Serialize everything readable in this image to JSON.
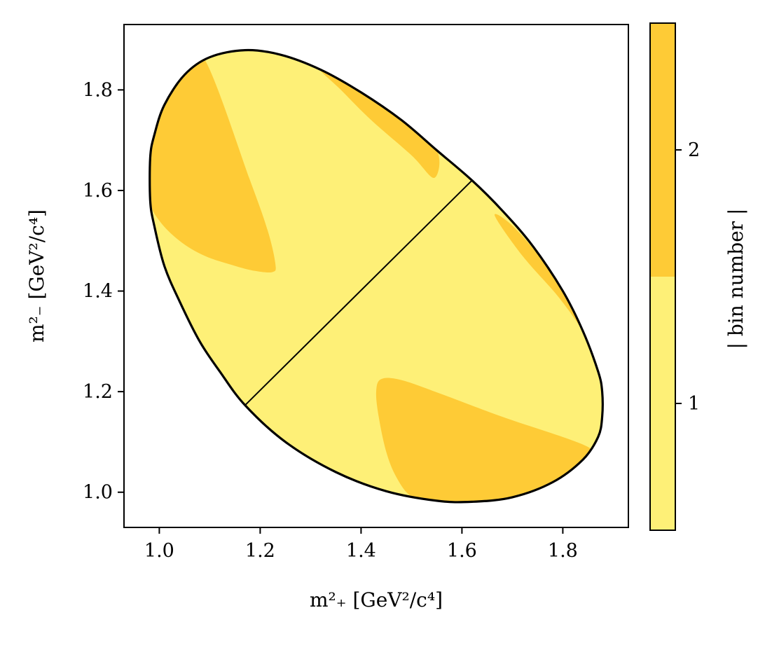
{
  "chart_data": {
    "type": "heatmap",
    "title": "",
    "xlabel": "m²₊ [GeV²/c⁴]",
    "ylabel": "m²₋ [GeV²/c⁴]",
    "xlim": [
      0.93,
      1.93
    ],
    "ylim": [
      0.93,
      1.93
    ],
    "x_ticks": [
      "1.0",
      "1.2",
      "1.4",
      "1.6",
      "1.8"
    ],
    "y_ticks": [
      "1.0",
      "1.2",
      "1.4",
      "1.6",
      "1.8"
    ],
    "x_tick_values": [
      1.0,
      1.2,
      1.4,
      1.6,
      1.8
    ],
    "y_tick_values": [
      1.0,
      1.2,
      1.4,
      1.6,
      1.8
    ],
    "grid": false,
    "colorbar": {
      "label": "| bin number |",
      "ticks": [
        "1",
        "2"
      ],
      "tick_values": [
        1,
        2
      ],
      "range": [
        0.5,
        2.5
      ],
      "colors": [
        "#fef077",
        "#fecb36"
      ]
    },
    "dalitz_boundary": [
      [
        1.17,
        1.173
      ],
      [
        1.25,
        1.1
      ],
      [
        1.35,
        1.04
      ],
      [
        1.45,
        1.002
      ],
      [
        1.55,
        0.983
      ],
      [
        1.62,
        0.981
      ],
      [
        1.7,
        0.99
      ],
      [
        1.78,
        1.02
      ],
      [
        1.84,
        1.065
      ],
      [
        1.87,
        1.11
      ],
      [
        1.878,
        1.15
      ],
      [
        1.878,
        1.2
      ],
      [
        1.87,
        1.24
      ],
      [
        1.84,
        1.32
      ],
      [
        1.8,
        1.4
      ],
      [
        1.74,
        1.49
      ],
      [
        1.68,
        1.56
      ],
      [
        1.62,
        1.62
      ],
      [
        1.55,
        1.68
      ],
      [
        1.48,
        1.74
      ],
      [
        1.4,
        1.795
      ],
      [
        1.32,
        1.84
      ],
      [
        1.24,
        1.87
      ],
      [
        1.17,
        1.879
      ],
      [
        1.1,
        1.865
      ],
      [
        1.05,
        1.83
      ],
      [
        1.01,
        1.77
      ],
      [
        0.99,
        1.71
      ],
      [
        0.982,
        1.665
      ],
      [
        0.982,
        1.58
      ],
      [
        0.99,
        1.53
      ],
      [
        1.01,
        1.45
      ],
      [
        1.04,
        1.38
      ],
      [
        1.08,
        1.3
      ],
      [
        1.12,
        1.24
      ],
      [
        1.17,
        1.173
      ]
    ],
    "symmetry_line": [
      [
        1.17,
        1.173
      ],
      [
        1.62,
        1.62
      ]
    ],
    "regions": [
      {
        "bin": 2,
        "points": [
          [
            1.09,
            1.86
          ],
          [
            1.18,
            1.62
          ],
          [
            1.215,
            1.52
          ],
          [
            1.23,
            1.455
          ],
          [
            1.225,
            1.438
          ],
          [
            1.19,
            1.44
          ],
          [
            1.15,
            1.45
          ],
          [
            1.09,
            1.47
          ],
          [
            1.04,
            1.5
          ],
          [
            1.0,
            1.54
          ],
          [
            0.982,
            1.58
          ],
          [
            0.982,
            1.665
          ],
          [
            0.99,
            1.71
          ],
          [
            1.01,
            1.77
          ],
          [
            1.05,
            1.83
          ]
        ]
      },
      {
        "bin": 2,
        "points": [
          [
            1.44,
            1.225
          ],
          [
            1.48,
            1.223
          ],
          [
            1.56,
            1.195
          ],
          [
            1.68,
            1.15
          ],
          [
            1.85,
            1.09
          ],
          [
            1.84,
            1.065
          ],
          [
            1.78,
            1.02
          ],
          [
            1.7,
            0.99
          ],
          [
            1.62,
            0.981
          ],
          [
            1.55,
            0.983
          ],
          [
            1.5,
            0.992
          ],
          [
            1.47,
            1.03
          ],
          [
            1.45,
            1.08
          ],
          [
            1.435,
            1.15
          ],
          [
            1.43,
            1.2
          ]
        ]
      },
      {
        "bin": 2,
        "points": [
          [
            1.32,
            1.84
          ],
          [
            1.4,
            1.795
          ],
          [
            1.48,
            1.74
          ],
          [
            1.55,
            1.68
          ],
          [
            1.545,
            1.625
          ],
          [
            1.5,
            1.67
          ],
          [
            1.42,
            1.74
          ],
          [
            1.36,
            1.8
          ]
        ]
      },
      {
        "bin": 2,
        "points": [
          [
            1.665,
            1.55
          ],
          [
            1.7,
            1.53
          ],
          [
            1.76,
            1.46
          ],
          [
            1.82,
            1.365
          ],
          [
            1.85,
            1.29
          ],
          [
            1.84,
            1.32
          ],
          [
            1.79,
            1.39
          ],
          [
            1.72,
            1.47
          ]
        ]
      }
    ]
  }
}
